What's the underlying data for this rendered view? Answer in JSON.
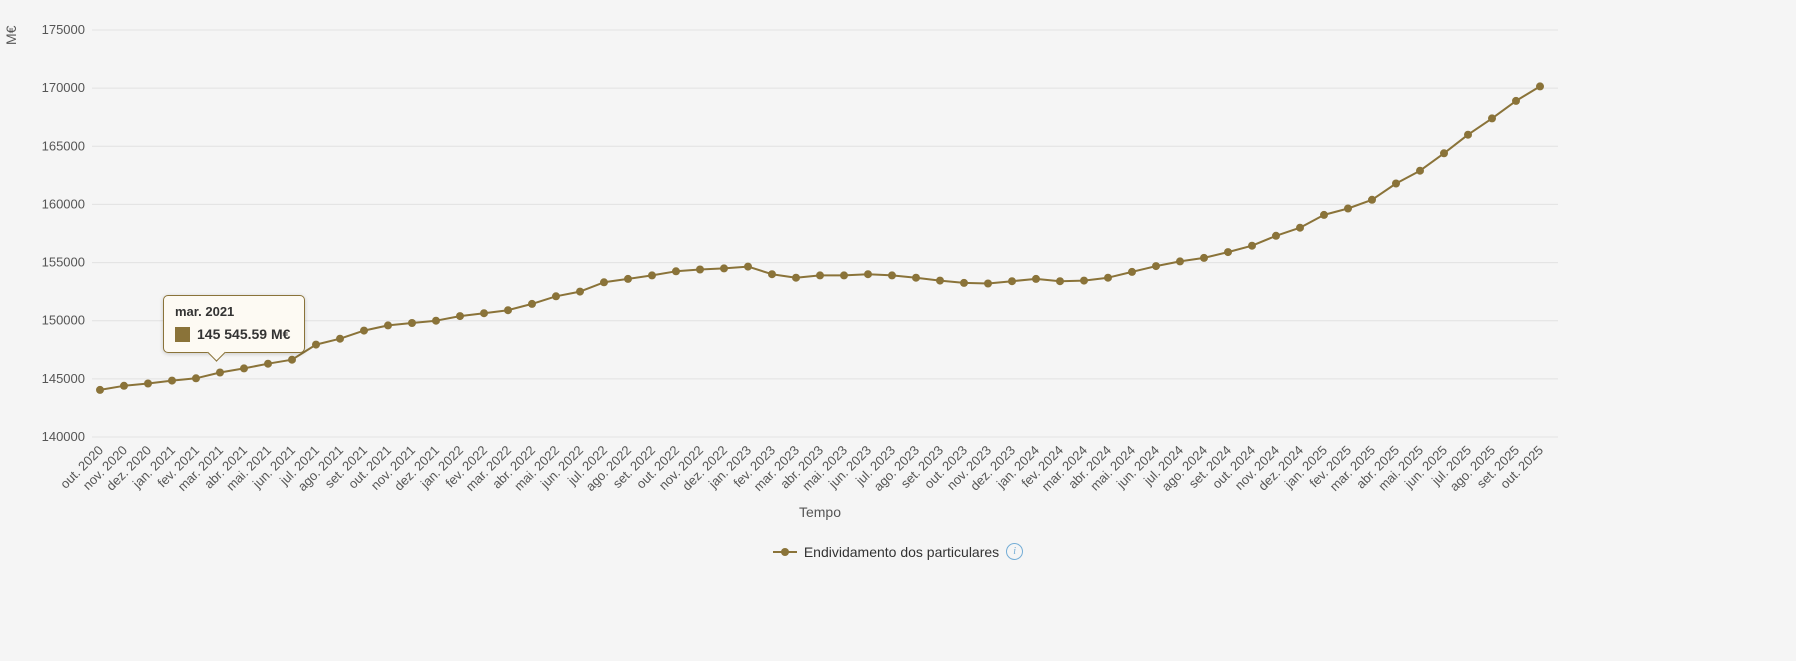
{
  "colors": {
    "accent": "#8a7339",
    "background": "#f5f5f5",
    "grid": "#e2e2e2",
    "tooltip_bg": "#fdfaf3",
    "info": "#74add6"
  },
  "axis": {
    "y_title": "M€",
    "x_title": "Tempo"
  },
  "tooltip": {
    "title": "mar. 2021",
    "value": "145 545.59 M€",
    "point_index": 5
  },
  "legend": {
    "label": "Endividamento dos particulares",
    "info_icon": "i"
  },
  "chart_data": {
    "type": "line",
    "title": "",
    "xlabel": "Tempo",
    "ylabel": "M€",
    "ylim": [
      140000,
      175000
    ],
    "yticks": [
      140000,
      145000,
      150000,
      155000,
      160000,
      165000,
      170000,
      175000
    ],
    "grid": "horizontal",
    "legend_position": "bottom",
    "categories": [
      "out. 2020",
      "nov. 2020",
      "dez. 2020",
      "jan. 2021",
      "fev. 2021",
      "mar. 2021",
      "abr. 2021",
      "mai. 2021",
      "jun. 2021",
      "jul. 2021",
      "ago. 2021",
      "set. 2021",
      "out. 2021",
      "nov. 2021",
      "dez. 2021",
      "jan. 2022",
      "fev. 2022",
      "mar. 2022",
      "abr. 2022",
      "mai. 2022",
      "jun. 2022",
      "jul. 2022",
      "ago. 2022",
      "set. 2022",
      "out. 2022",
      "nov. 2022",
      "dez. 2022",
      "jan. 2023",
      "fev. 2023",
      "mar. 2023",
      "abr. 2023",
      "mai. 2023",
      "jun. 2023",
      "jul. 2023",
      "ago. 2023",
      "set. 2023",
      "out. 2023",
      "nov. 2023",
      "dez. 2023",
      "jan. 2024",
      "fev. 2024",
      "mar. 2024",
      "abr. 2024",
      "mai. 2024",
      "jun. 2024",
      "jul. 2024",
      "ago. 2024",
      "set. 2024",
      "out. 2024",
      "nov. 2024",
      "dez. 2024",
      "jan. 2025",
      "fev. 2025",
      "mar. 2025",
      "abr. 2025",
      "mai. 2025",
      "jun. 2025",
      "jul. 2025",
      "ago. 2025",
      "set. 2025",
      "out. 2025"
    ],
    "series": [
      {
        "name": "Endividamento dos particulares",
        "color": "#8a7339",
        "values": [
          144050,
          144400,
          144600,
          144850,
          145050,
          145545.59,
          145900,
          146300,
          146650,
          147950,
          148450,
          149150,
          149600,
          149800,
          150000,
          150400,
          150650,
          150900,
          151450,
          152100,
          152500,
          153300,
          153600,
          153900,
          154250,
          154400,
          154500,
          154650,
          154000,
          153700,
          153900,
          153900,
          154000,
          153900,
          153700,
          153450,
          153250,
          153200,
          153400,
          153600,
          153400,
          153450,
          153700,
          154200,
          154700,
          155100,
          155400,
          155900,
          156450,
          157300,
          158000,
          159100,
          159650,
          160400,
          161800,
          162900,
          164400,
          166000,
          167400,
          168900,
          170150
        ]
      }
    ]
  }
}
